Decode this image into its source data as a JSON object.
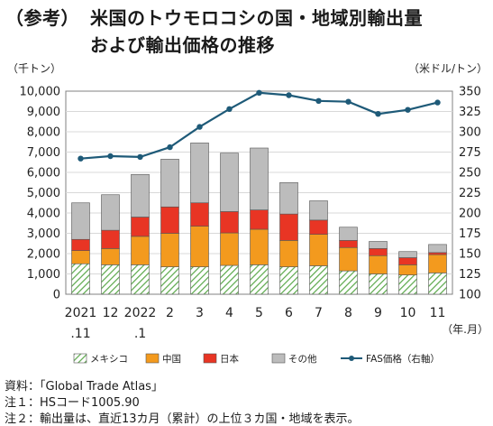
{
  "title_tag": "（参考）",
  "title_line1": "米国のトウモロコシの国・地域別輸出量",
  "title_line2": "および輸出価格の推移",
  "chart_data": {
    "type": "bar",
    "stacked": true,
    "left_unit": "（千トン）",
    "right_unit": "（米ドル/トン）",
    "x_unit": "（年.月）",
    "categories": [
      "2021\n.11",
      "12",
      "2022\n.1",
      "2",
      "3",
      "4",
      "5",
      "6",
      "7",
      "8",
      "9",
      "10",
      "11"
    ],
    "ylim": [
      0,
      10000
    ],
    "yticks": [
      "0",
      "1,000",
      "2,000",
      "3,000",
      "4,000",
      "5,000",
      "6,000",
      "7,000",
      "8,000",
      "9,000",
      "10,000"
    ],
    "y2lim": [
      100,
      350
    ],
    "y2ticks": [
      "100",
      "125",
      "150",
      "175",
      "200",
      "225",
      "250",
      "275",
      "300",
      "325",
      "350"
    ],
    "series": [
      {
        "name": "メキシコ",
        "color": "#7bbf6a",
        "pattern": "hatch",
        "values": [
          1500,
          1450,
          1450,
          1350,
          1350,
          1420,
          1450,
          1350,
          1400,
          1150,
          1000,
          950,
          1050
        ]
      },
      {
        "name": "中国",
        "color": "#f39a1e",
        "values": [
          650,
          800,
          1400,
          1650,
          2000,
          1600,
          1750,
          1300,
          1550,
          1150,
          900,
          500,
          900
        ]
      },
      {
        "name": "日本",
        "color": "#e83524",
        "values": [
          550,
          900,
          950,
          1300,
          1150,
          1050,
          950,
          1300,
          700,
          350,
          350,
          350,
          100
        ]
      },
      {
        "name": "その他",
        "color": "#bcbcbc",
        "values": [
          1800,
          1750,
          2100,
          2350,
          2950,
          2880,
          3050,
          1550,
          950,
          650,
          350,
          300,
          400
        ]
      }
    ],
    "line": {
      "name": "FAS価格（右軸）",
      "color": "#1e5a78",
      "values": [
        267,
        270,
        269,
        281,
        306,
        328,
        348,
        345,
        338,
        337,
        322,
        327,
        336
      ]
    }
  },
  "notes": [
    "資料：「Global Trade Atlas」",
    "注１：HSコード1005.90",
    "注２：輸出量は、直近13カ月（累計）の上位３カ国・地域を表示。"
  ]
}
